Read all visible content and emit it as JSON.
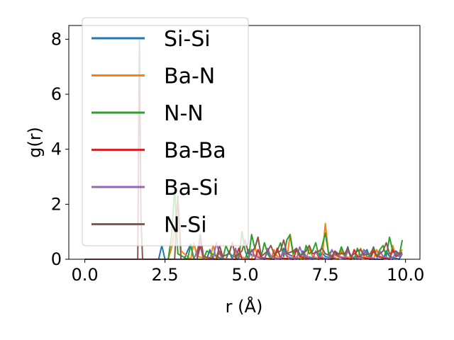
{
  "chart_data": {
    "type": "line",
    "xlabel": "r (Å)",
    "ylabel": "g(r)",
    "xlim": [
      -0.5,
      10.45
    ],
    "ylim": [
      0,
      8.5
    ],
    "xticks": [
      0.0,
      2.5,
      5.0,
      7.5,
      10.0
    ],
    "xtick_labels": [
      "0.0",
      "2.5",
      "5.0",
      "7.5",
      "10.0"
    ],
    "yticks": [
      0,
      2,
      4,
      6,
      8
    ],
    "ytick_labels": [
      "0",
      "2",
      "4",
      "6",
      "8"
    ],
    "grid": false,
    "legend_position": "upper-left",
    "series": [
      {
        "name": "Si-Si",
        "color": "#1f77b4",
        "x": [
          0.0,
          2.3,
          2.4,
          2.5,
          3.1,
          3.2,
          3.3,
          3.4,
          3.8,
          3.9,
          4.0,
          4.4,
          4.5,
          4.6,
          5.0,
          5.1,
          5.2,
          5.6,
          5.7,
          5.8,
          6.1,
          6.2,
          6.3,
          6.7,
          6.8,
          6.9,
          7.3,
          7.4,
          7.5,
          7.9,
          8.0,
          8.1,
          8.2,
          8.3,
          8.7,
          8.8,
          8.9,
          9.3,
          9.4,
          9.5,
          9.8,
          9.9
        ],
        "y": [
          0.0,
          0.0,
          0.5,
          0.0,
          0.0,
          0.3,
          0.55,
          0.0,
          0.0,
          0.35,
          0.0,
          0.0,
          0.3,
          0.0,
          0.0,
          0.35,
          0.15,
          0.0,
          0.3,
          0.1,
          0.0,
          0.4,
          0.2,
          0.0,
          0.3,
          0.1,
          0.0,
          0.25,
          0.1,
          0.0,
          0.3,
          0.1,
          0.45,
          0.0,
          0.2,
          0.35,
          0.0,
          0.0,
          0.3,
          0.1,
          0.0,
          0.2
        ]
      },
      {
        "name": "Ba-N",
        "color": "#ff7f0e",
        "x": [
          0.0,
          2.6,
          2.7,
          2.8,
          2.9,
          3.0,
          3.3,
          3.4,
          3.5,
          3.9,
          4.0,
          4.1,
          4.6,
          4.7,
          4.8,
          5.2,
          5.3,
          5.4,
          5.8,
          5.9,
          6.0,
          6.3,
          6.4,
          6.5,
          6.9,
          7.0,
          7.1,
          7.4,
          7.5,
          7.6,
          7.9,
          8.0,
          8.1,
          8.5,
          8.6,
          8.7,
          9.0,
          9.1,
          9.2,
          9.5,
          9.6,
          9.7,
          9.8,
          9.9
        ],
        "y": [
          0.0,
          0.0,
          0.4,
          1.0,
          2.3,
          0.3,
          0.0,
          0.6,
          0.1,
          0.0,
          0.5,
          0.05,
          0.0,
          0.3,
          0.1,
          0.0,
          0.45,
          0.1,
          0.0,
          0.35,
          0.1,
          0.0,
          0.9,
          0.1,
          0.0,
          0.4,
          0.1,
          0.0,
          1.3,
          0.2,
          0.0,
          0.35,
          0.1,
          0.0,
          0.4,
          0.1,
          0.0,
          0.35,
          0.1,
          0.0,
          0.5,
          0.1,
          0.2,
          0.35
        ]
      },
      {
        "name": "N-N",
        "color": "#2ca02c",
        "x": [
          0.0,
          2.6,
          2.7,
          2.8,
          2.9,
          3.2,
          3.3,
          3.4,
          3.7,
          3.8,
          4.3,
          4.4,
          4.5,
          4.8,
          4.9,
          5.0,
          5.1,
          5.2,
          5.3,
          5.4,
          5.5,
          5.6,
          5.7,
          5.8,
          6.0,
          6.1,
          6.2,
          6.3,
          6.4,
          6.5,
          6.6,
          6.8,
          6.9,
          7.0,
          7.1,
          7.2,
          7.3,
          7.4,
          7.5,
          7.6,
          7.7,
          7.9,
          8.0,
          8.1,
          8.2,
          8.4,
          8.5,
          8.6,
          8.7,
          8.9,
          9.0,
          9.1,
          9.2,
          9.3,
          9.4,
          9.5,
          9.6,
          9.7,
          9.8,
          9.9
        ],
        "y": [
          0.0,
          0.0,
          0.8,
          2.6,
          0.2,
          0.0,
          0.5,
          0.0,
          0.0,
          0.3,
          0.0,
          0.5,
          0.2,
          0.0,
          1.0,
          0.3,
          0.0,
          0.9,
          0.4,
          0.8,
          0.1,
          0.6,
          0.2,
          0.0,
          0.3,
          0.6,
          0.1,
          0.7,
          0.9,
          0.2,
          0.4,
          0.0,
          0.5,
          0.2,
          0.3,
          0.6,
          0.1,
          0.5,
          0.95,
          0.2,
          0.3,
          0.1,
          0.45,
          0.15,
          0.3,
          0.0,
          0.4,
          0.1,
          0.35,
          0.1,
          0.45,
          0.1,
          0.35,
          0.5,
          0.1,
          0.8,
          0.3,
          0.2,
          0.1,
          0.7
        ]
      },
      {
        "name": "Ba-Ba",
        "color": "#d62728",
        "x": [
          0.0,
          3.5,
          3.6,
          3.7,
          4.1,
          4.2,
          4.3,
          4.7,
          4.8,
          4.9,
          5.3,
          5.4,
          5.5,
          5.9,
          6.0,
          6.1,
          6.5,
          6.6,
          6.7,
          7.1,
          7.2,
          7.3,
          7.7,
          7.8,
          7.9,
          8.3,
          8.4,
          8.5,
          8.9,
          9.0,
          9.1,
          9.5,
          9.6,
          9.7,
          9.9
        ],
        "y": [
          0.0,
          0.0,
          0.5,
          0.0,
          0.0,
          0.3,
          0.0,
          0.0,
          0.4,
          0.0,
          0.0,
          0.35,
          0.05,
          0.0,
          0.4,
          0.05,
          0.0,
          0.35,
          0.1,
          0.0,
          0.3,
          0.05,
          0.0,
          0.3,
          0.1,
          0.0,
          0.35,
          0.1,
          0.0,
          0.3,
          0.1,
          0.0,
          0.35,
          0.1,
          0.2
        ]
      },
      {
        "name": "Ba-Si",
        "color": "#9467bd",
        "x": [
          0.0,
          3.4,
          3.5,
          3.6,
          3.7,
          4.0,
          4.1,
          4.2,
          4.3,
          4.6,
          4.7,
          4.8,
          5.1,
          5.2,
          5.3,
          5.6,
          5.7,
          5.8,
          6.1,
          6.2,
          6.3,
          6.6,
          6.7,
          6.8,
          7.1,
          7.2,
          7.3,
          7.6,
          7.7,
          7.8,
          8.1,
          8.2,
          8.3,
          8.6,
          8.7,
          8.8,
          9.1,
          9.2,
          9.3,
          9.6,
          9.7,
          9.8,
          9.9
        ],
        "y": [
          0.0,
          0.0,
          0.3,
          0.7,
          0.0,
          0.0,
          0.6,
          0.2,
          0.0,
          0.0,
          0.4,
          0.0,
          0.0,
          0.35,
          0.1,
          0.0,
          0.4,
          0.1,
          0.0,
          0.3,
          0.1,
          0.0,
          0.45,
          0.15,
          0.0,
          0.3,
          0.1,
          0.0,
          0.35,
          0.15,
          0.0,
          0.3,
          0.1,
          0.0,
          0.35,
          0.1,
          0.0,
          0.3,
          0.1,
          0.0,
          0.3,
          0.1,
          0.2
        ]
      },
      {
        "name": "N-Si",
        "color": "#8c564b",
        "x": [
          0.0,
          1.65,
          1.7,
          1.75,
          1.8,
          2.8,
          2.9,
          3.0,
          3.5,
          3.6,
          3.7,
          4.1,
          4.2,
          4.3,
          4.5,
          4.6,
          4.7,
          4.9,
          5.0,
          5.1,
          5.3,
          5.4,
          5.5,
          5.7,
          5.8,
          5.9,
          6.1,
          6.2,
          6.3,
          6.5,
          6.6,
          6.7,
          6.9,
          7.0,
          7.1,
          7.3,
          7.4,
          7.5,
          7.7,
          7.8,
          7.9,
          8.1,
          8.2,
          8.3,
          8.5,
          8.6,
          8.7,
          8.9,
          9.0,
          9.1,
          9.3,
          9.4,
          9.5,
          9.7,
          9.8,
          9.9
        ],
        "y": [
          0.0,
          0.0,
          8.0,
          1.5,
          0.0,
          0.0,
          2.3,
          0.0,
          0.0,
          0.9,
          0.1,
          0.0,
          0.5,
          0.1,
          0.2,
          0.6,
          0.1,
          0.3,
          0.7,
          0.2,
          0.4,
          0.8,
          0.1,
          0.3,
          0.5,
          0.2,
          0.3,
          0.7,
          0.2,
          0.3,
          0.4,
          0.1,
          0.3,
          0.5,
          0.2,
          0.3,
          0.4,
          0.2,
          0.1,
          0.3,
          0.2,
          0.2,
          0.4,
          0.1,
          0.3,
          0.35,
          0.15,
          0.2,
          0.4,
          0.1,
          0.3,
          0.6,
          0.2,
          0.3,
          0.2,
          0.25
        ]
      }
    ]
  }
}
